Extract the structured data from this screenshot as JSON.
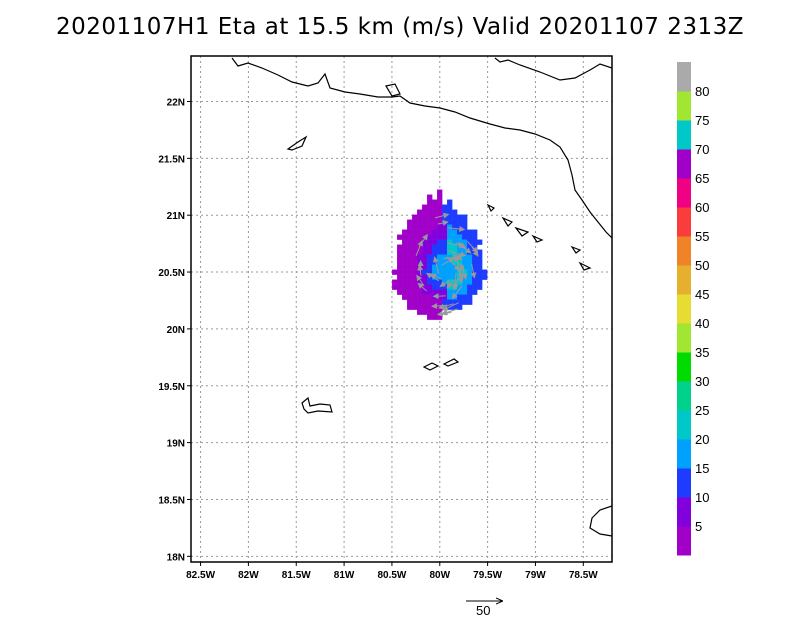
{
  "title": "20201107H1 Eta at 15.5 km (m/s) Valid 20201107  2313Z",
  "map": {
    "lon_range": [
      -82.6,
      -78.2
    ],
    "lat_range": [
      17.95,
      22.4
    ],
    "lat_ticks": [
      {
        "value": 22.0,
        "label": "22N"
      },
      {
        "value": 21.5,
        "label": "21.5N"
      },
      {
        "value": 21.0,
        "label": "21N"
      },
      {
        "value": 20.5,
        "label": "20.5N"
      },
      {
        "value": 20.0,
        "label": "20N"
      },
      {
        "value": 19.5,
        "label": "19.5N"
      },
      {
        "value": 19.0,
        "label": "19N"
      },
      {
        "value": 18.5,
        "label": "18.5N"
      },
      {
        "value": 18.0,
        "label": "18N"
      }
    ],
    "lon_ticks": [
      {
        "value": -82.5,
        "label": "82.5W"
      },
      {
        "value": -82.0,
        "label": "82W"
      },
      {
        "value": -81.5,
        "label": "81.5W"
      },
      {
        "value": -81.0,
        "label": "81W"
      },
      {
        "value": -80.5,
        "label": "80.5W"
      },
      {
        "value": -80.0,
        "label": "80W"
      },
      {
        "value": -79.5,
        "label": "79.5W"
      },
      {
        "value": -79.0,
        "label": "79W"
      },
      {
        "value": -78.5,
        "label": "78.5W"
      }
    ],
    "grid": true,
    "wind_center": {
      "lon": -79.95,
      "lat": 20.5
    }
  },
  "colorbar": {
    "levels": [
      {
        "color": "#a000c8",
        "label": "5"
      },
      {
        "color": "#8200dc",
        "label": "10"
      },
      {
        "color": "#1e3cff",
        "label": "15"
      },
      {
        "color": "#00a0ff",
        "label": "20"
      },
      {
        "color": "#00c8c8",
        "label": "25"
      },
      {
        "color": "#00d28c",
        "label": "30"
      },
      {
        "color": "#00dc00",
        "label": "35"
      },
      {
        "color": "#a0e632",
        "label": "40"
      },
      {
        "color": "#e6dc32",
        "label": "45"
      },
      {
        "color": "#e6af2d",
        "label": "50"
      },
      {
        "color": "#f08228",
        "label": "55"
      },
      {
        "color": "#fa3c3c",
        "label": "60"
      },
      {
        "color": "#f00082",
        "label": "65"
      },
      {
        "color": "#a000c8",
        "label": "70"
      },
      {
        "color": "#00c8c8",
        "label": "75"
      },
      {
        "color": "#a0e632",
        "label": "80"
      },
      {
        "color": "#aaaaaa",
        "label": ""
      }
    ]
  },
  "vector_scale": {
    "label": "50"
  }
}
